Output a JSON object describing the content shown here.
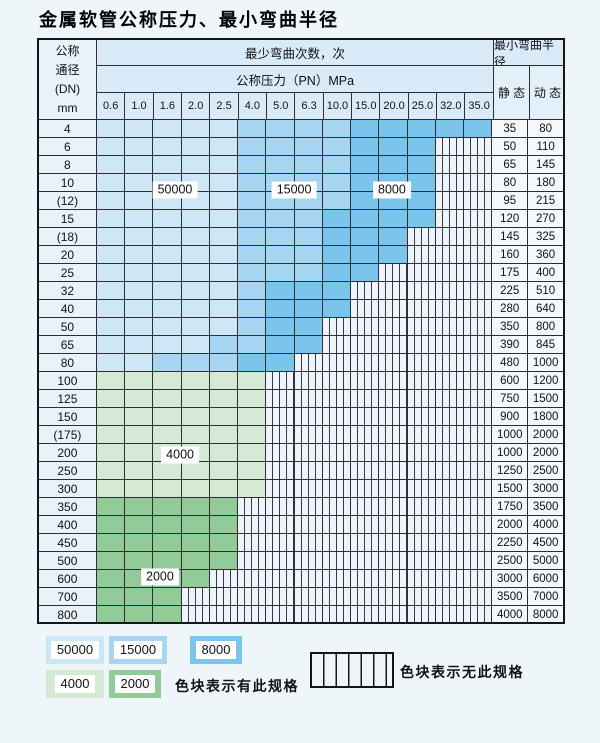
{
  "title": "金属软管公称压力、最小弯曲半径",
  "table": {
    "dn_header_lines": [
      "公称",
      "通径",
      "(DN)",
      "mm"
    ],
    "bend_cycles_header": "最少弯曲次数，次",
    "pressure_header": "公称压力（PN）MPa",
    "pressure_columns": [
      "0.6",
      "1.0",
      "1.6",
      "2.0",
      "2.5",
      "4.0",
      "5.0",
      "6.3",
      "10.0",
      "15.0",
      "20.0",
      "25.0",
      "32.0",
      "35.0"
    ],
    "radius_header": "最小弯曲半径",
    "static_header": "静 态",
    "dynamic_header": "动 态",
    "cell_codes": {
      "A": "50000",
      "B": "15000",
      "C": "8000",
      "D": "4000",
      "E": "2000",
      "N": "无此规格"
    },
    "rows": [
      {
        "dn": "4",
        "cells": "AAAAABBBBCCCCC",
        "static": "35",
        "dynamic": "80"
      },
      {
        "dn": "6",
        "cells": "AAAAABBBBCCCNN",
        "static": "50",
        "dynamic": "110"
      },
      {
        "dn": "8",
        "cells": "AAAAABBBBCCCNN",
        "static": "65",
        "dynamic": "145"
      },
      {
        "dn": "10",
        "cells": "AAAAABBBBCCCNN",
        "static": "80",
        "dynamic": "180"
      },
      {
        "dn": "(12)",
        "cells": "AAAAABBBBCCCNN",
        "static": "95",
        "dynamic": "215"
      },
      {
        "dn": "15",
        "cells": "AAAAABBBCCCCNN",
        "static": "120",
        "dynamic": "270"
      },
      {
        "dn": "(18)",
        "cells": "AAAAABBBCCCNNN",
        "static": "145",
        "dynamic": "325"
      },
      {
        "dn": "20",
        "cells": "AAAAABBBCCCNNN",
        "static": "160",
        "dynamic": "360"
      },
      {
        "dn": "25",
        "cells": "AAAAABBBCCNNNN",
        "static": "175",
        "dynamic": "400"
      },
      {
        "dn": "32",
        "cells": "AAAAABCCCNNNNN",
        "static": "225",
        "dynamic": "510"
      },
      {
        "dn": "40",
        "cells": "AAAAABCCCNNNNN",
        "static": "280",
        "dynamic": "640"
      },
      {
        "dn": "50",
        "cells": "AAAAABCCNNNNNN",
        "static": "350",
        "dynamic": "800"
      },
      {
        "dn": "65",
        "cells": "AAAABBCCNNNNNN",
        "static": "390",
        "dynamic": "845"
      },
      {
        "dn": "80",
        "cells": "AABBBCCNNNNNNN",
        "static": "480",
        "dynamic": "1000"
      },
      {
        "dn": "100",
        "cells": "DDDDDDNNNNNNNN",
        "static": "600",
        "dynamic": "1200"
      },
      {
        "dn": "125",
        "cells": "DDDDDDNNNNNNNN",
        "static": "750",
        "dynamic": "1500"
      },
      {
        "dn": "150",
        "cells": "DDDDDDNNNNNNNN",
        "static": "900",
        "dynamic": "1800"
      },
      {
        "dn": "(175)",
        "cells": "DDDDDDNNNNNNNN",
        "static": "1000",
        "dynamic": "2000"
      },
      {
        "dn": "200",
        "cells": "DDDDDDNNNNNNNN",
        "static": "1000",
        "dynamic": "2000"
      },
      {
        "dn": "250",
        "cells": "DDDDDDNNNNNNNN",
        "static": "1250",
        "dynamic": "2500"
      },
      {
        "dn": "300",
        "cells": "DDDDDDNNNNNNNN",
        "static": "1500",
        "dynamic": "3000"
      },
      {
        "dn": "350",
        "cells": "EEEEENNNNNNNNN",
        "static": "1750",
        "dynamic": "3500"
      },
      {
        "dn": "400",
        "cells": "EEEEENNNNNNNNN",
        "static": "2000",
        "dynamic": "4000"
      },
      {
        "dn": "450",
        "cells": "EEEEENNNNNNNNN",
        "static": "2250",
        "dynamic": "4500"
      },
      {
        "dn": "500",
        "cells": "EEEEENNNNNNNNN",
        "static": "2500",
        "dynamic": "5000"
      },
      {
        "dn": "600",
        "cells": "EEEENNNNNNNNNN",
        "static": "3000",
        "dynamic": "6000"
      },
      {
        "dn": "700",
        "cells": "EEENNNNNNNNNNN",
        "static": "3500",
        "dynamic": "7000"
      },
      {
        "dn": "800",
        "cells": "EEENNNNNNNNNNN",
        "static": "4000",
        "dynamic": "8000"
      }
    ],
    "region_labels": [
      {
        "text": "50000",
        "col": 2.75,
        "row": 3.9
      },
      {
        "text": "15000",
        "col": 6.95,
        "row": 3.9
      },
      {
        "text": "8000",
        "col": 10.4,
        "row": 3.9
      },
      {
        "text": "4000",
        "col": 2.93,
        "row": 18.6
      },
      {
        "text": "2000",
        "col": 2.22,
        "row": 25.4
      }
    ]
  },
  "colors": {
    "v50000": "#cde7f7",
    "v15000": "#a6d6f1",
    "v8000": "#7bc4ec",
    "v4000": "#d6e9d5",
    "v2000": "#93cb98",
    "no_spec_bg": "#edf4fb",
    "grid": "#2e2e2e",
    "header_bg": "#d9ebf8",
    "page_bg": "#eff6fa"
  },
  "legend": {
    "swatches_blue": [
      {
        "label": "50000",
        "code": "A"
      },
      {
        "label": "15000",
        "code": "B"
      },
      {
        "label": "8000",
        "code": "C"
      }
    ],
    "swatches_green": [
      {
        "label": "4000",
        "code": "D"
      },
      {
        "label": "2000",
        "code": "E"
      }
    ],
    "has_spec_text": "色块表示有此规格",
    "no_spec_text": "色块表示无此规格"
  }
}
